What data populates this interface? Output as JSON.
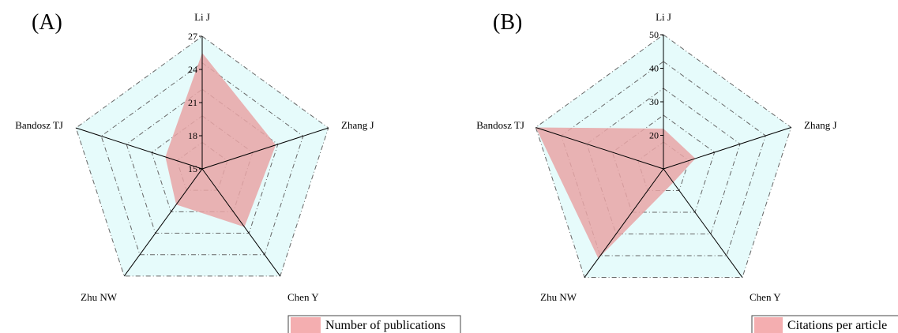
{
  "chart_data": [
    {
      "type": "radar",
      "panel_label": "(A)",
      "axes": [
        "Li J",
        "Zhang J",
        "Chen Y",
        "Zhu NW",
        "Bandosz TJ"
      ],
      "range": [
        15,
        27
      ],
      "ticks": [
        15,
        18,
        21,
        24,
        27
      ],
      "series": [
        {
          "name": "Number of publications",
          "values": [
            25.5,
            22,
            21.5,
            19,
            18.5
          ]
        }
      ],
      "fill_color": "#e8a4a6",
      "background_color": "#e6fbfb",
      "legend_position": "bottom-right"
    },
    {
      "type": "radar",
      "panel_label": "(B)",
      "axes": [
        "Li J",
        "Zhang J",
        "Chen Y",
        "Zhu NW",
        "Bandosz TJ"
      ],
      "range": [
        10,
        50
      ],
      "ticks": [
        20,
        30,
        40,
        50
      ],
      "series": [
        {
          "name": "Citations per article",
          "values": [
            22,
            20,
            15,
            43,
            50
          ]
        }
      ],
      "fill_color": "#e8a4a6",
      "background_color": "#e6fbfb",
      "legend_position": "bottom-right"
    }
  ]
}
